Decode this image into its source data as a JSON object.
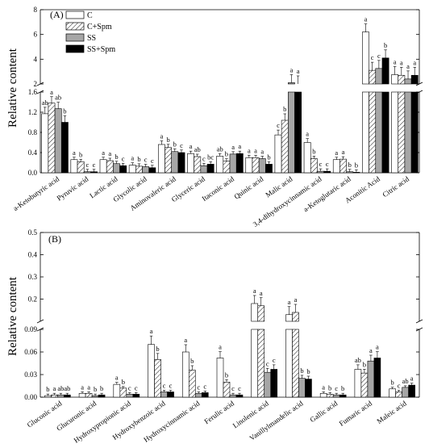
{
  "chart_data": [
    {
      "type": "bar",
      "panel_label": "(A)",
      "ylabel": "Relative content",
      "axis_break": true,
      "lower_ylim": [
        0,
        1.6
      ],
      "lower_ticks": [
        "0.0",
        "0.4",
        "0.8",
        "1.2",
        "1.6"
      ],
      "upper_ylim": [
        2,
        8
      ],
      "upper_ticks": [
        "2",
        "4",
        "6",
        "8"
      ],
      "legend": [
        "C",
        "C+Spm",
        "SS",
        "SS+Spm"
      ],
      "legend_position": "top-left",
      "categories": [
        "a-Ketobutyric acid",
        "Pyruvic acid",
        "Lactic acid",
        "Glycolic acid",
        "Aminovaleric acid",
        "Glyceric acid",
        "Itaconic acid",
        "Quinic acid",
        "Malic acid",
        "3,4-dihydroxycinnamic acid",
        "a-Ketoglutaric acid",
        "Aconitic Acid",
        "Citric acid"
      ],
      "series": [
        {
          "name": "C",
          "values": [
            1.17,
            0.26,
            0.26,
            0.15,
            0.56,
            0.38,
            0.33,
            0.3,
            0.75,
            0.6,
            0.26,
            6.2,
            2.75
          ]
        },
        {
          "name": "C+Spm",
          "values": [
            1.38,
            0.22,
            0.24,
            0.13,
            0.5,
            0.32,
            0.23,
            0.3,
            1.04,
            0.28,
            0.27,
            3.1,
            2.7
          ]
        },
        {
          "name": "SS",
          "values": [
            1.27,
            0.02,
            0.18,
            0.12,
            0.42,
            0.14,
            0.37,
            0.28,
            2.1,
            0.03,
            0.02,
            3.25,
            2.4
          ]
        },
        {
          "name": "SS+Spm",
          "values": [
            1.0,
            0.02,
            0.14,
            0.1,
            0.4,
            0.17,
            0.38,
            0.17,
            2.0,
            0.03,
            0.01,
            4.1,
            2.7
          ]
        }
      ],
      "letters": [
        [
          "ab",
          "a",
          "ab",
          "b"
        ],
        [
          "a",
          "b",
          "c",
          "c"
        ],
        [
          "a",
          "a",
          "b",
          "c"
        ],
        [
          "a",
          "b",
          "c",
          "c"
        ],
        [
          "a",
          "b",
          "b",
          "c"
        ],
        [
          "a",
          "ab",
          "c",
          "bc"
        ],
        [
          "ab",
          "b",
          "a",
          "a"
        ],
        [
          "a",
          "a",
          "a",
          "b"
        ],
        [
          "c",
          "b",
          "a",
          "a"
        ],
        [
          "a",
          "b",
          "c",
          "c"
        ],
        [
          "a",
          "a",
          "b",
          "b"
        ],
        [
          "a",
          "c",
          "c",
          "b"
        ],
        [
          "a",
          "a",
          "a",
          "a"
        ]
      ]
    },
    {
      "type": "bar",
      "panel_label": "(B)",
      "ylabel": "Relative content",
      "axis_break": true,
      "lower_ylim": [
        0,
        0.09
      ],
      "lower_ticks": [
        "0.00",
        "0.03",
        "0.06",
        "0.09"
      ],
      "upper_ylim": [
        0.1,
        0.5
      ],
      "upper_ticks": [
        "0.2",
        "0.3",
        "0.4",
        "0.5"
      ],
      "legend": [
        "C",
        "C+Spm",
        "SS",
        "SS+Spm"
      ],
      "categories": [
        "Gluconic acid",
        "Glucuronic acid",
        "Hydroxypropionic acid",
        "Hydroxybenzoic acid",
        "Hydroxycinnamic acid",
        "Ferulic acid",
        "Linolenic acid",
        "Vanillylmandelic acid",
        "Gallic acid",
        "Fumaric acid",
        "Maleic acid"
      ],
      "series": [
        {
          "name": "C",
          "values": [
            0.002,
            0.005,
            0.017,
            0.07,
            0.06,
            0.052,
            0.18,
            0.13,
            0.005,
            0.037,
            0.011
          ]
        },
        {
          "name": "C+Spm",
          "values": [
            0.003,
            0.005,
            0.012,
            0.05,
            0.036,
            0.02,
            0.17,
            0.14,
            0.004,
            0.032,
            0.007
          ]
        },
        {
          "name": "SS",
          "values": [
            0.003,
            0.002,
            0.004,
            0.007,
            0.005,
            0.003,
            0.033,
            0.025,
            0.003,
            0.048,
            0.013
          ]
        },
        {
          "name": "SS+Spm",
          "values": [
            0.003,
            0.003,
            0.004,
            0.007,
            0.006,
            0.003,
            0.037,
            0.024,
            0.003,
            0.052,
            0.016
          ]
        }
      ],
      "letters": [
        [
          "b",
          "a",
          "ab",
          "ab"
        ],
        [
          "a",
          "a",
          "b",
          "b"
        ],
        [
          "a",
          "b",
          "c",
          "c"
        ],
        [
          "a",
          "b",
          "c",
          "c"
        ],
        [
          "a",
          "b",
          "c",
          "c"
        ],
        [
          "a",
          "b",
          "c",
          "c"
        ],
        [
          "a",
          "a",
          "c",
          "c"
        ],
        [
          "a",
          "a",
          "b",
          "b"
        ],
        [
          "a",
          "b",
          "c",
          "b"
        ],
        [
          "ab",
          "b",
          "a",
          "a"
        ],
        [
          "b",
          "c",
          "ab",
          "a"
        ]
      ]
    }
  ]
}
